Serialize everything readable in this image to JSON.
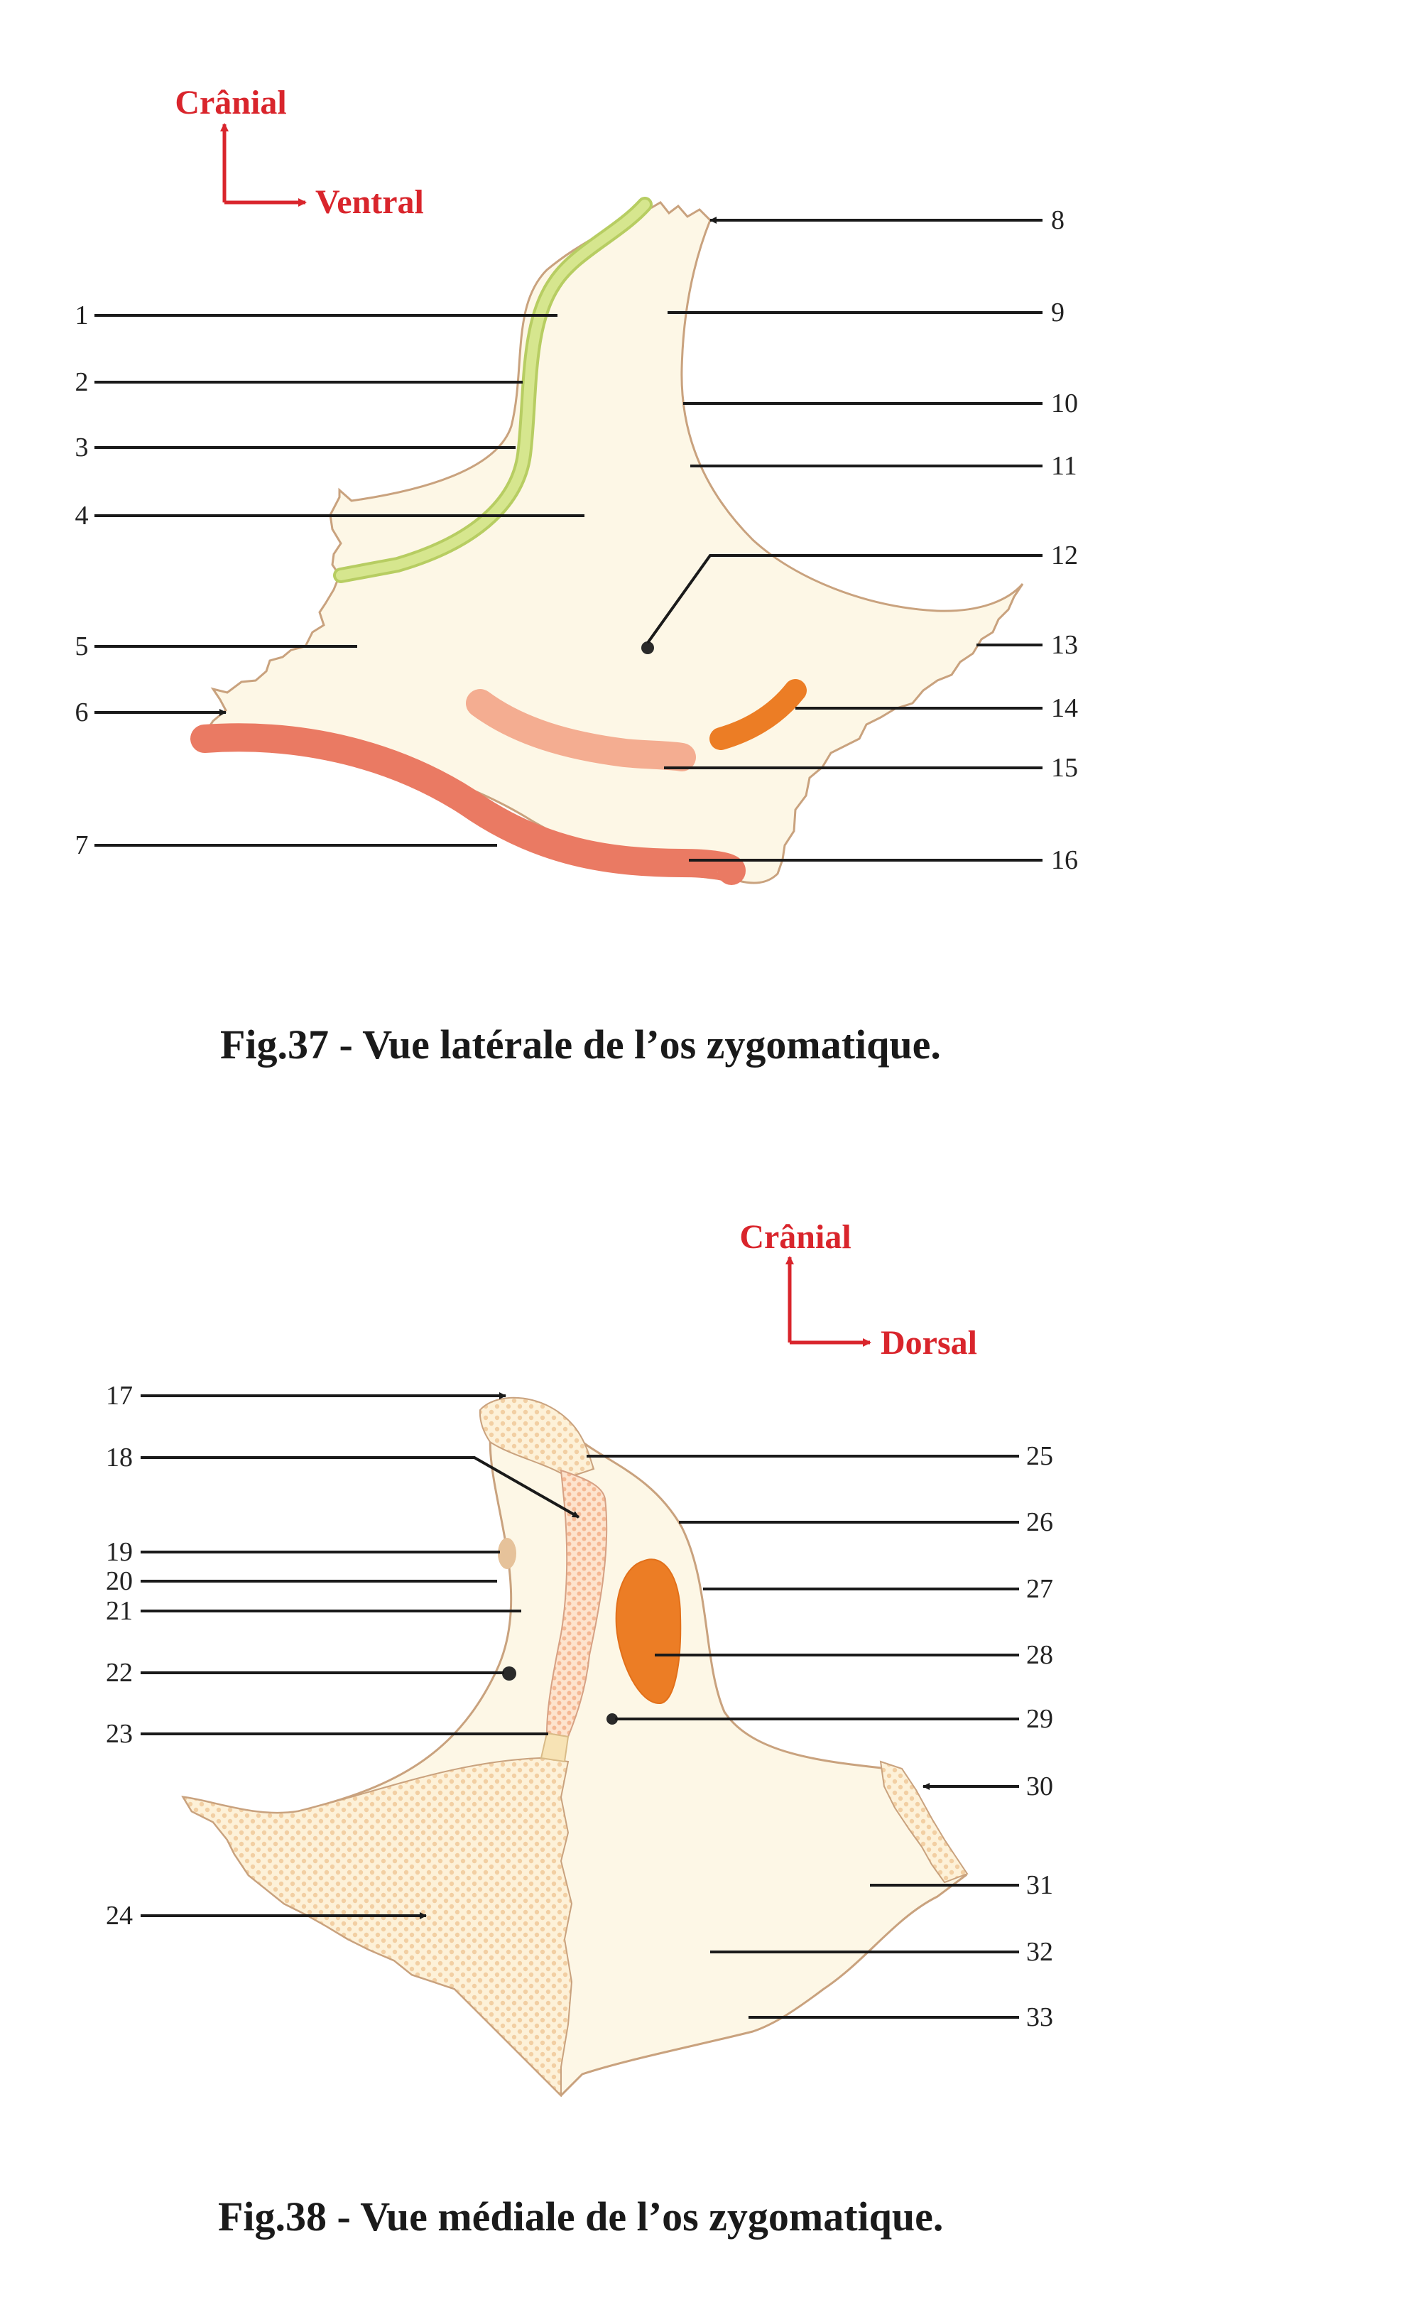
{
  "colors": {
    "bone_fill": "#fdf7e6",
    "bone_outline": "#c9a27e",
    "orientation": "#d9252c",
    "green_band": "#cfe07e",
    "pale_salmon": "#f4ad91",
    "dark_salmon": "#ea7a63",
    "orange": "#ec7d25",
    "articular_hatch": "#f3c99a"
  },
  "fig37": {
    "caption": "Fig.37 - Vue latérale de l’os zygomatique.",
    "orientation": {
      "up": "Crânial",
      "right": "Ventral"
    },
    "labels": [
      "1",
      "2",
      "3",
      "4",
      "5",
      "6",
      "7",
      "8",
      "9",
      "10",
      "11",
      "12",
      "13",
      "14",
      "15",
      "16"
    ]
  },
  "fig38": {
    "caption": "Fig.38 - Vue médiale de l’os zygomatique.",
    "orientation": {
      "up": "Crânial",
      "right": "Dorsal"
    },
    "labels": [
      "17",
      "18",
      "19",
      "20",
      "21",
      "22",
      "23",
      "24",
      "25",
      "26",
      "27",
      "28",
      "29",
      "30",
      "31",
      "32",
      "33"
    ]
  }
}
